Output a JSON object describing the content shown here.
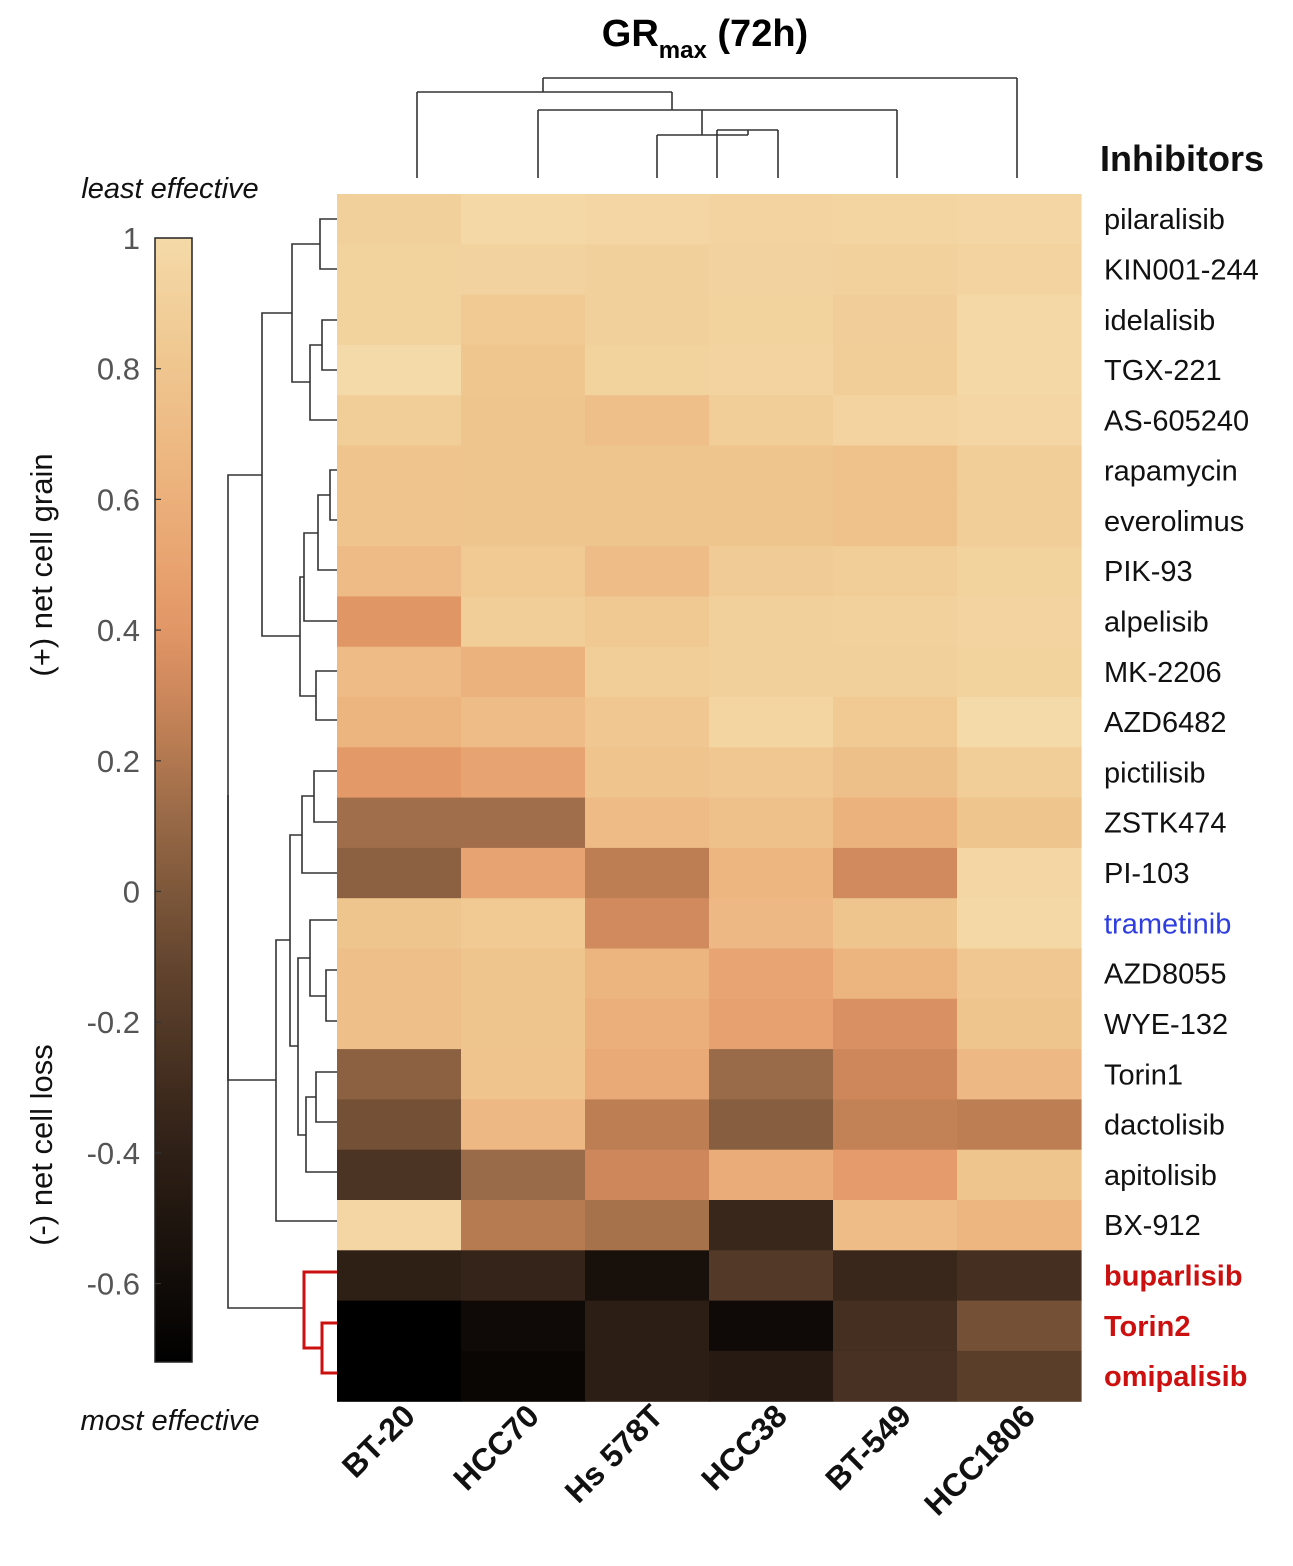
{
  "chart_data": {
    "type": "heatmap",
    "title": "GR",
    "title_subscript": "max",
    "title_suffix": " (72h)",
    "row_header": "Inhibitors",
    "columns": [
      "BT-20",
      "HCC70",
      "Hs 578T",
      "HCC38",
      "BT-549",
      "HCC1806"
    ],
    "rows": [
      {
        "name": "pilaralisib",
        "color": "#111111",
        "bold": false,
        "values": [
          0.9,
          0.98,
          0.96,
          0.94,
          0.95,
          0.96
        ]
      },
      {
        "name": "KIN001-244",
        "color": "#111111",
        "bold": false,
        "values": [
          0.92,
          0.93,
          0.9,
          0.93,
          0.91,
          0.94
        ]
      },
      {
        "name": "idelalisib",
        "color": "#111111",
        "bold": false,
        "values": [
          0.92,
          0.84,
          0.9,
          0.92,
          0.89,
          0.98
        ]
      },
      {
        "name": "TGX-221",
        "color": "#111111",
        "bold": false,
        "values": [
          1.0,
          0.81,
          0.92,
          0.94,
          0.88,
          0.98
        ]
      },
      {
        "name": "AS-605240",
        "color": "#111111",
        "bold": false,
        "values": [
          0.88,
          0.8,
          0.74,
          0.88,
          0.94,
          0.96
        ]
      },
      {
        "name": "rapamycin",
        "color": "#111111",
        "bold": false,
        "values": [
          0.79,
          0.8,
          0.8,
          0.8,
          0.77,
          0.88
        ]
      },
      {
        "name": "everolimus",
        "color": "#111111",
        "bold": false,
        "values": [
          0.79,
          0.8,
          0.8,
          0.8,
          0.77,
          0.88
        ]
      },
      {
        "name": "PIK-93",
        "color": "#111111",
        "bold": false,
        "values": [
          0.7,
          0.84,
          0.72,
          0.86,
          0.88,
          0.92
        ]
      },
      {
        "name": "alpelisib",
        "color": "#111111",
        "bold": false,
        "values": [
          0.4,
          0.88,
          0.83,
          0.9,
          0.91,
          0.94
        ]
      },
      {
        "name": "MK-2206",
        "color": "#111111",
        "bold": false,
        "values": [
          0.7,
          0.62,
          0.88,
          0.9,
          0.9,
          0.92
        ]
      },
      {
        "name": "AZD6482",
        "color": "#111111",
        "bold": false,
        "values": [
          0.64,
          0.72,
          0.82,
          0.95,
          0.84,
          1.0
        ]
      },
      {
        "name": "pictilisib",
        "color": "#111111",
        "bold": false,
        "values": [
          0.42,
          0.5,
          0.79,
          0.82,
          0.75,
          0.88
        ]
      },
      {
        "name": "ZSTK474",
        "color": "#111111",
        "bold": false,
        "values": [
          0.14,
          0.14,
          0.7,
          0.76,
          0.62,
          0.8
        ]
      },
      {
        "name": "PI-103",
        "color": "#111111",
        "bold": false,
        "values": [
          0.06,
          0.5,
          0.24,
          0.65,
          0.32,
          0.96
        ]
      },
      {
        "name": "trametinib",
        "color": "#2f3ee0",
        "bold": false,
        "values": [
          0.8,
          0.84,
          0.32,
          0.68,
          0.8,
          0.98
        ]
      },
      {
        "name": "AZD8055",
        "color": "#111111",
        "bold": false,
        "values": [
          0.74,
          0.8,
          0.64,
          0.52,
          0.64,
          0.82
        ]
      },
      {
        "name": "WYE-132",
        "color": "#111111",
        "bold": false,
        "values": [
          0.74,
          0.8,
          0.6,
          0.48,
          0.36,
          0.8
        ]
      },
      {
        "name": "Torin1",
        "color": "#111111",
        "bold": false,
        "values": [
          0.06,
          0.79,
          0.56,
          0.12,
          0.3,
          0.68
        ]
      },
      {
        "name": "dactolisib",
        "color": "#111111",
        "bold": false,
        "values": [
          -0.04,
          0.68,
          0.24,
          0.04,
          0.26,
          0.24
        ]
      },
      {
        "name": "apitolisib",
        "color": "#111111",
        "bold": false,
        "values": [
          -0.24,
          0.12,
          0.3,
          0.58,
          0.44,
          0.8
        ]
      },
      {
        "name": "BX-912",
        "color": "#111111",
        "bold": false,
        "values": [
          0.96,
          0.22,
          0.16,
          -0.34,
          0.72,
          0.66
        ]
      },
      {
        "name": "buparlisib",
        "color": "#cc1010",
        "bold": true,
        "values": [
          -0.4,
          -0.36,
          -0.56,
          -0.2,
          -0.34,
          -0.28
        ]
      },
      {
        "name": "Torin2",
        "color": "#cc1010",
        "bold": true,
        "values": [
          -0.72,
          -0.62,
          -0.42,
          -0.62,
          -0.28,
          -0.04
        ]
      },
      {
        "name": "omipalisib",
        "color": "#cc1010",
        "bold": true,
        "values": [
          -0.72,
          -0.66,
          -0.42,
          -0.46,
          -0.26,
          -0.16
        ]
      }
    ],
    "colorbar": {
      "range": [
        -0.72,
        1.0
      ],
      "ticks": [
        "1",
        "0.8",
        "0.6",
        "0.4",
        "0.2",
        "0",
        "-0.2",
        "-0.4",
        "-0.6"
      ],
      "tick_values": [
        1.0,
        0.8,
        0.6,
        0.4,
        0.2,
        0.0,
        -0.2,
        -0.4,
        -0.6
      ],
      "top_label": "least effective",
      "bottom_label": "most effective",
      "upper_side_label": "(+) net cell grain",
      "lower_side_label": "(-) net cell loss"
    },
    "highlight_colors": {
      "red_cluster": "#cc1010",
      "blue_label": "#2f3ee0"
    }
  }
}
